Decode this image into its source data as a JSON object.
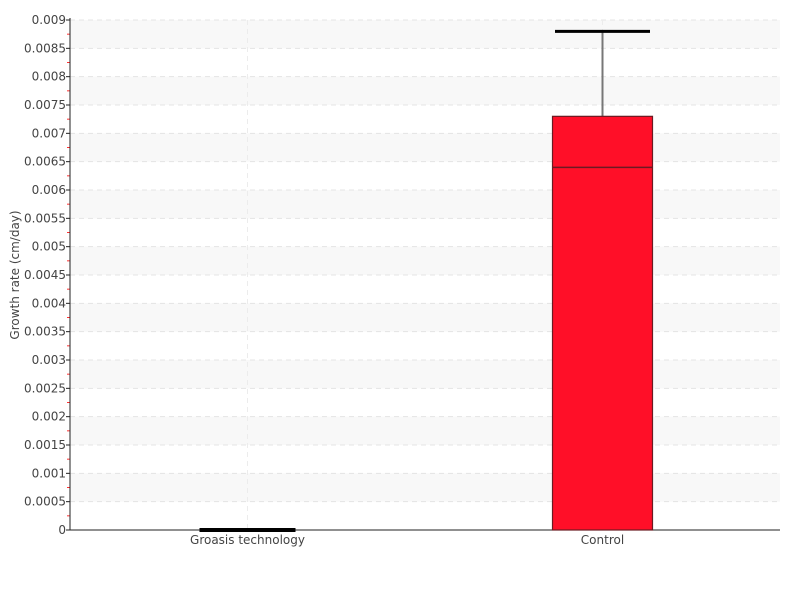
{
  "chart_data": {
    "type": "box",
    "title": "",
    "xlabel": "",
    "ylabel": "Growth rate (cm/day)",
    "ylim": [
      0,
      0.009
    ],
    "ytick_step": 0.0005,
    "yticks": [
      "0",
      "0.0005",
      "0.001",
      "0.0015",
      "0.002",
      "0.0025",
      "0.003",
      "0.0035",
      "0.004",
      "0.0045",
      "0.005",
      "0.0055",
      "0.006",
      "0.0065",
      "0.007",
      "0.0075",
      "0.008",
      "0.0085",
      "0.009"
    ],
    "grid": true,
    "categories": [
      "Groasis technology",
      "Control"
    ],
    "boxes": [
      {
        "category": "Groasis technology",
        "min": 0,
        "q1": 0,
        "median": 0,
        "q3": 0,
        "max": 0
      },
      {
        "category": "Control",
        "min": 0,
        "q1": 0,
        "median": 0.0064,
        "q3": 0.0073,
        "max": 0.0088
      }
    ],
    "colors": {
      "box_fill": "#ff0f28",
      "box_stroke": "#6b1a22",
      "band": "#f8f8f8",
      "minor_tick": "#ff3030"
    }
  }
}
